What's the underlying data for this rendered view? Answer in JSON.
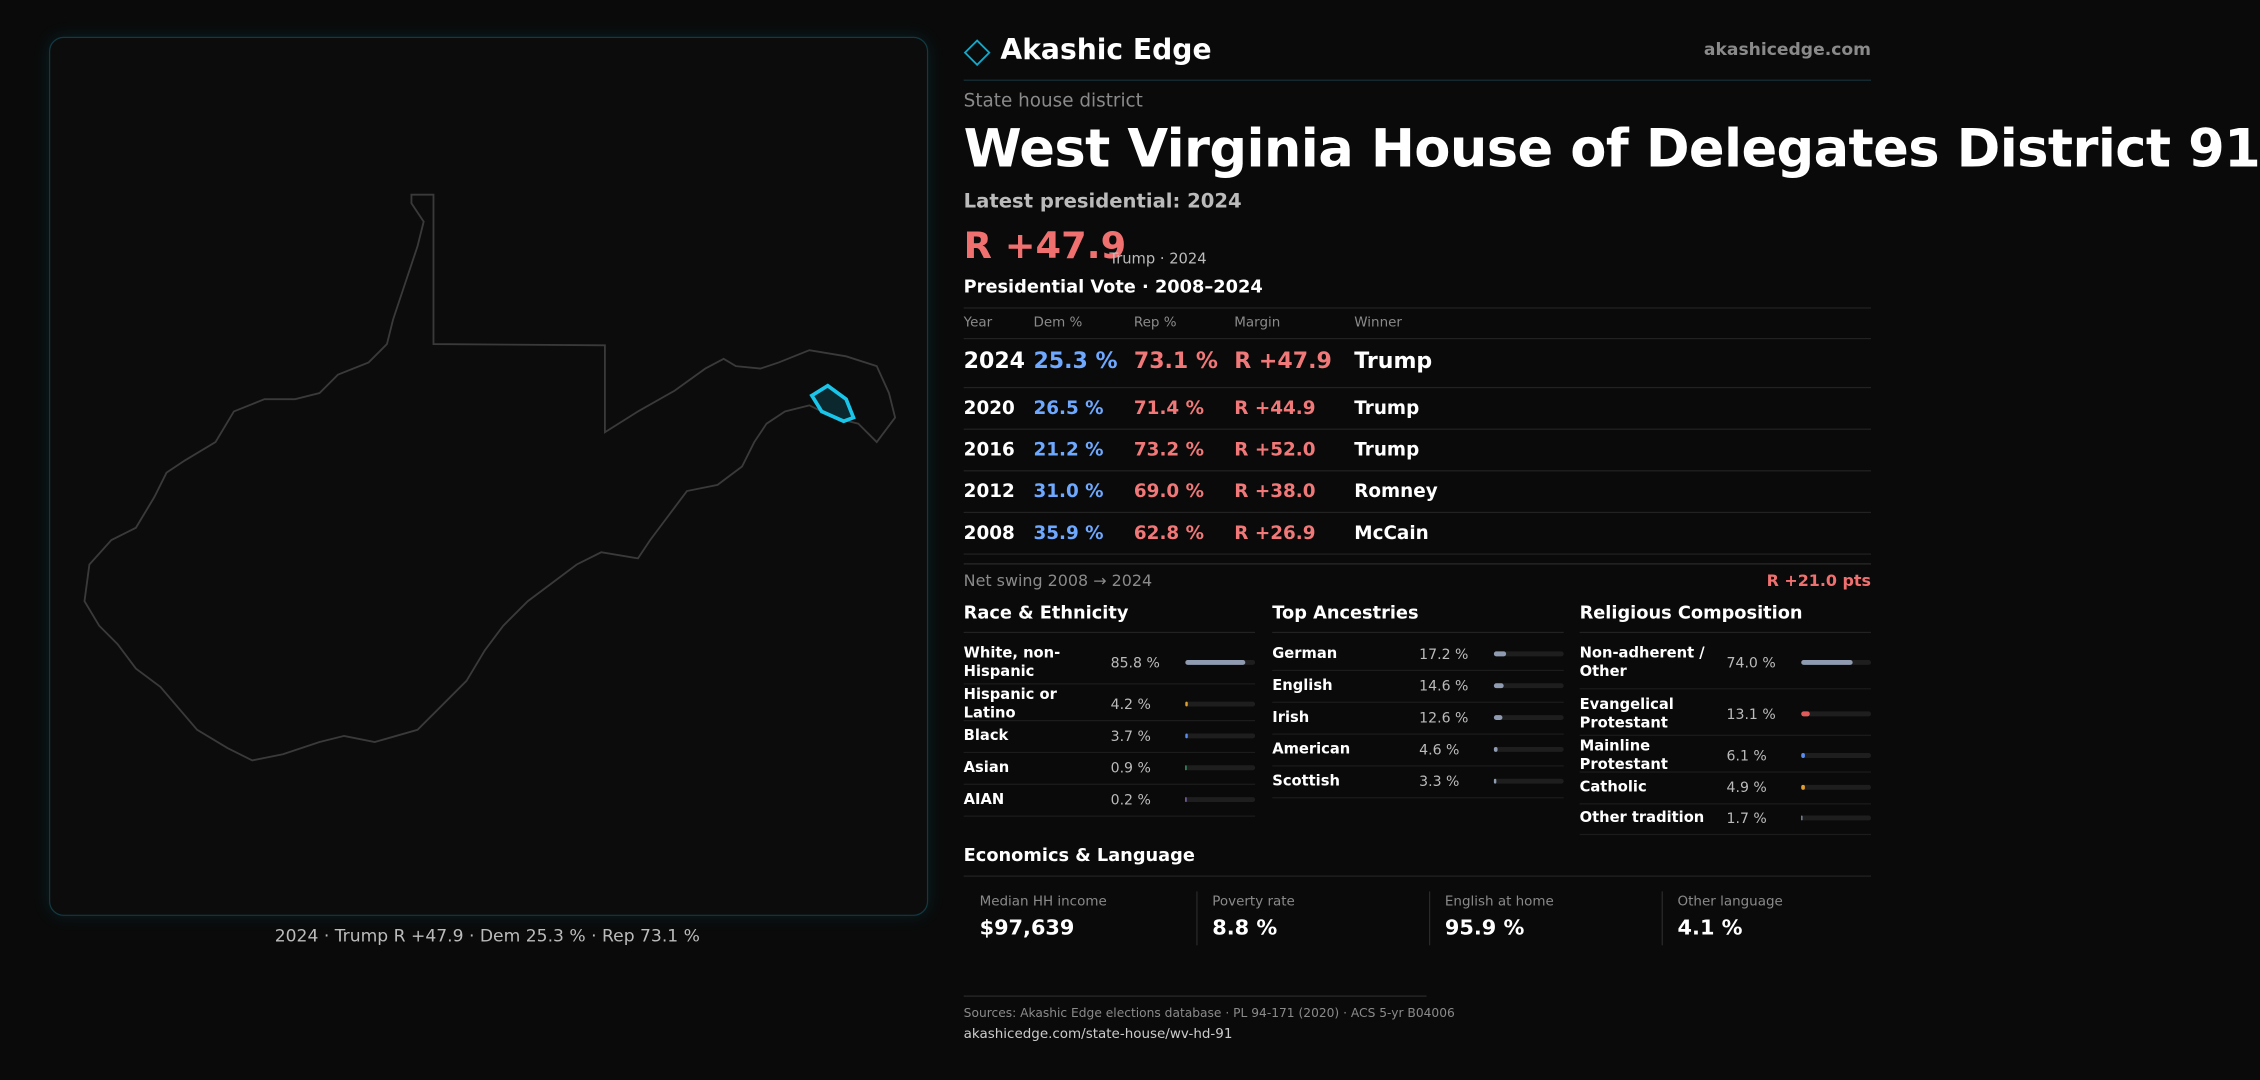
{
  "map": {
    "caption": "2024 · Trump R +47.9 · Dem 25.3 % · Rep 73.1 %"
  },
  "header": {
    "brand": "Akashic Edge",
    "site": "akashicedge.com"
  },
  "district": {
    "kicker": "State house district",
    "title": "West Virginia House of Delegates District 91",
    "latest": "Latest presidential: 2024",
    "margin": "R +47.9",
    "margin_note": "Trump · 2024"
  },
  "vote_table": {
    "title": "Presidential Vote · 2008–2024",
    "columns": [
      "Year",
      "Dem %",
      "Rep %",
      "Margin",
      "Winner"
    ],
    "rows": [
      [
        "2024",
        "25.3 %",
        "73.1 %",
        "R +47.9",
        "Trump"
      ],
      [
        "2020",
        "26.5 %",
        "71.4 %",
        "R +44.9",
        "Trump"
      ],
      [
        "2016",
        "21.2 %",
        "73.2 %",
        "R +52.0",
        "Trump"
      ],
      [
        "2012",
        "31.0 %",
        "69.0 %",
        "R +38.0",
        "Romney"
      ],
      [
        "2008",
        "35.9 %",
        "62.8 %",
        "R +26.9",
        "McCain"
      ]
    ]
  },
  "net_swing": {
    "label": "Net swing 2008 → 2024",
    "value": "R +21.0 pts"
  },
  "race": {
    "title": "Race & Ethnicity",
    "items": [
      {
        "label": "White, non-Hispanic",
        "value": 85.8,
        "value_label": "85.8 %",
        "color": "#8f9bb0"
      },
      {
        "label": "Hispanic or Latino",
        "value": 4.2,
        "value_label": "4.2 %",
        "color": "#e0a030"
      },
      {
        "label": "Black",
        "value": 3.7,
        "value_label": "3.7 %",
        "color": "#5a8cf0"
      },
      {
        "label": "Asian",
        "value": 0.9,
        "value_label": "0.9 %",
        "color": "#3fb070"
      },
      {
        "label": "AIAN",
        "value": 0.2,
        "value_label": "0.2 %",
        "color": "#a070d0"
      }
    ]
  },
  "ancestry": {
    "title": "Top Ancestries",
    "items": [
      {
        "label": "German",
        "value": 17.2,
        "value_label": "17.2 %",
        "color": "#8f9bb0"
      },
      {
        "label": "English",
        "value": 14.6,
        "value_label": "14.6 %",
        "color": "#8f9bb0"
      },
      {
        "label": "Irish",
        "value": 12.6,
        "value_label": "12.6 %",
        "color": "#8f9bb0"
      },
      {
        "label": "American",
        "value": 4.6,
        "value_label": "4.6 %",
        "color": "#8f9bb0"
      },
      {
        "label": "Scottish",
        "value": 3.3,
        "value_label": "3.3 %",
        "color": "#8f9bb0"
      }
    ]
  },
  "religion": {
    "title": "Religious Composition",
    "items": [
      {
        "label": "Non-adherent / Other",
        "value": 74.0,
        "value_label": "74.0 %",
        "color": "#8f9bb0"
      },
      {
        "label": "Evangelical Protestant",
        "value": 13.1,
        "value_label": "13.1 %",
        "color": "#e05a5a"
      },
      {
        "label": "Mainline Protestant",
        "value": 6.1,
        "value_label": "6.1 %",
        "color": "#5a8cf0"
      },
      {
        "label": "Catholic",
        "value": 4.9,
        "value_label": "4.9 %",
        "color": "#e0a030"
      },
      {
        "label": "Other tradition",
        "value": 1.7,
        "value_label": "1.7 %",
        "color": "#8f9bb0"
      }
    ]
  },
  "economics": {
    "title": "Economics & Language",
    "items": [
      {
        "label": "Median HH income",
        "value": "$97,639"
      },
      {
        "label": "Poverty rate",
        "value": "8.8 %"
      },
      {
        "label": "English at home",
        "value": "95.9 %"
      },
      {
        "label": "Other language",
        "value": "4.1 %"
      }
    ]
  },
  "footer": {
    "sources": "Sources: Akashic Edge elections database · PL 94-171 (2020) · ACS 5-yr B04006",
    "url": "akashicedge.com/state-house/wv-hd-91"
  }
}
